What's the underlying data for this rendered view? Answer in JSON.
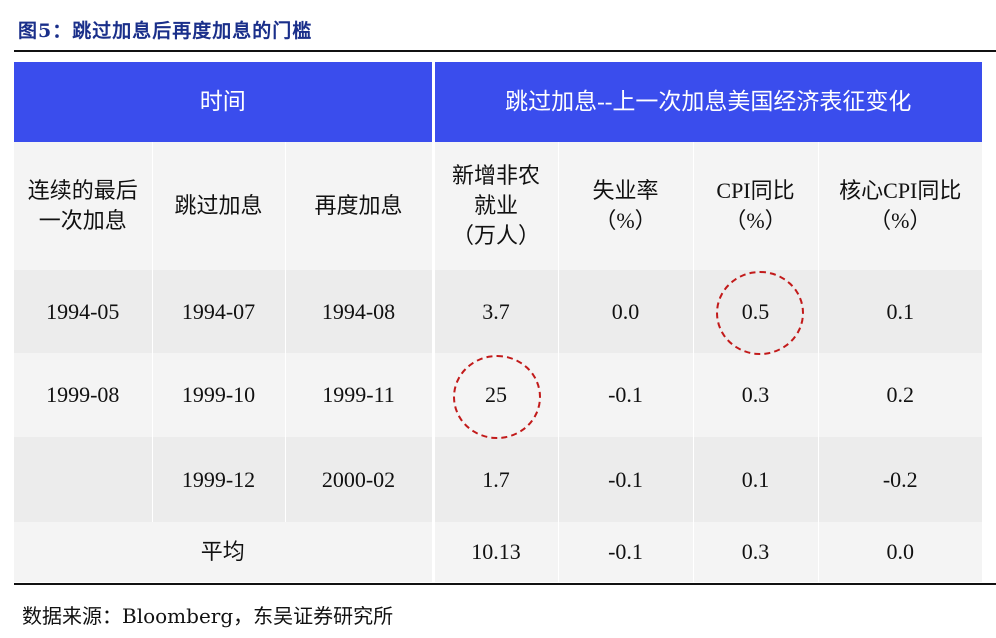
{
  "title": "图5：跳过加息后再度加息的门槛",
  "header": {
    "time_group": "时间",
    "change_group": "跳过加息--上一次加息美国经济表征变化"
  },
  "columns": {
    "last_hike": [
      "连续的最后",
      "一次加息"
    ],
    "skip": "跳过加息",
    "resume": "再度加息",
    "payroll": [
      "新增非农",
      "就业",
      "（万人）"
    ],
    "unemployment": [
      "失业率",
      "（%）"
    ],
    "cpi": [
      "CPI同比",
      "（%）"
    ],
    "core_cpi": [
      "核心CPI同比",
      "（%）"
    ]
  },
  "rows": [
    {
      "last_hike": "1994-05",
      "skip": "1994-07",
      "resume": "1994-08",
      "payroll": "3.7",
      "unemployment": "0.0",
      "cpi": "0.5",
      "core_cpi": "0.1"
    },
    {
      "last_hike": "1999-08",
      "skip": "1999-10",
      "resume": "1999-11",
      "payroll": "25",
      "unemployment": "-0.1",
      "cpi": "0.3",
      "core_cpi": "0.2"
    },
    {
      "last_hike": "",
      "skip": "1999-12",
      "resume": "2000-02",
      "payroll": "1.7",
      "unemployment": "-0.1",
      "cpi": "0.1",
      "core_cpi": "-0.2"
    }
  ],
  "average": {
    "label": "平均",
    "payroll": "10.13",
    "unemployment": "-0.1",
    "cpi": "0.3",
    "core_cpi": "0.0"
  },
  "source": "数据来源：Bloomberg，东吴证券研究所",
  "colors": {
    "header_bg": "#3a4ded",
    "title": "#1a2f8a",
    "circle": "#c21a1a"
  }
}
